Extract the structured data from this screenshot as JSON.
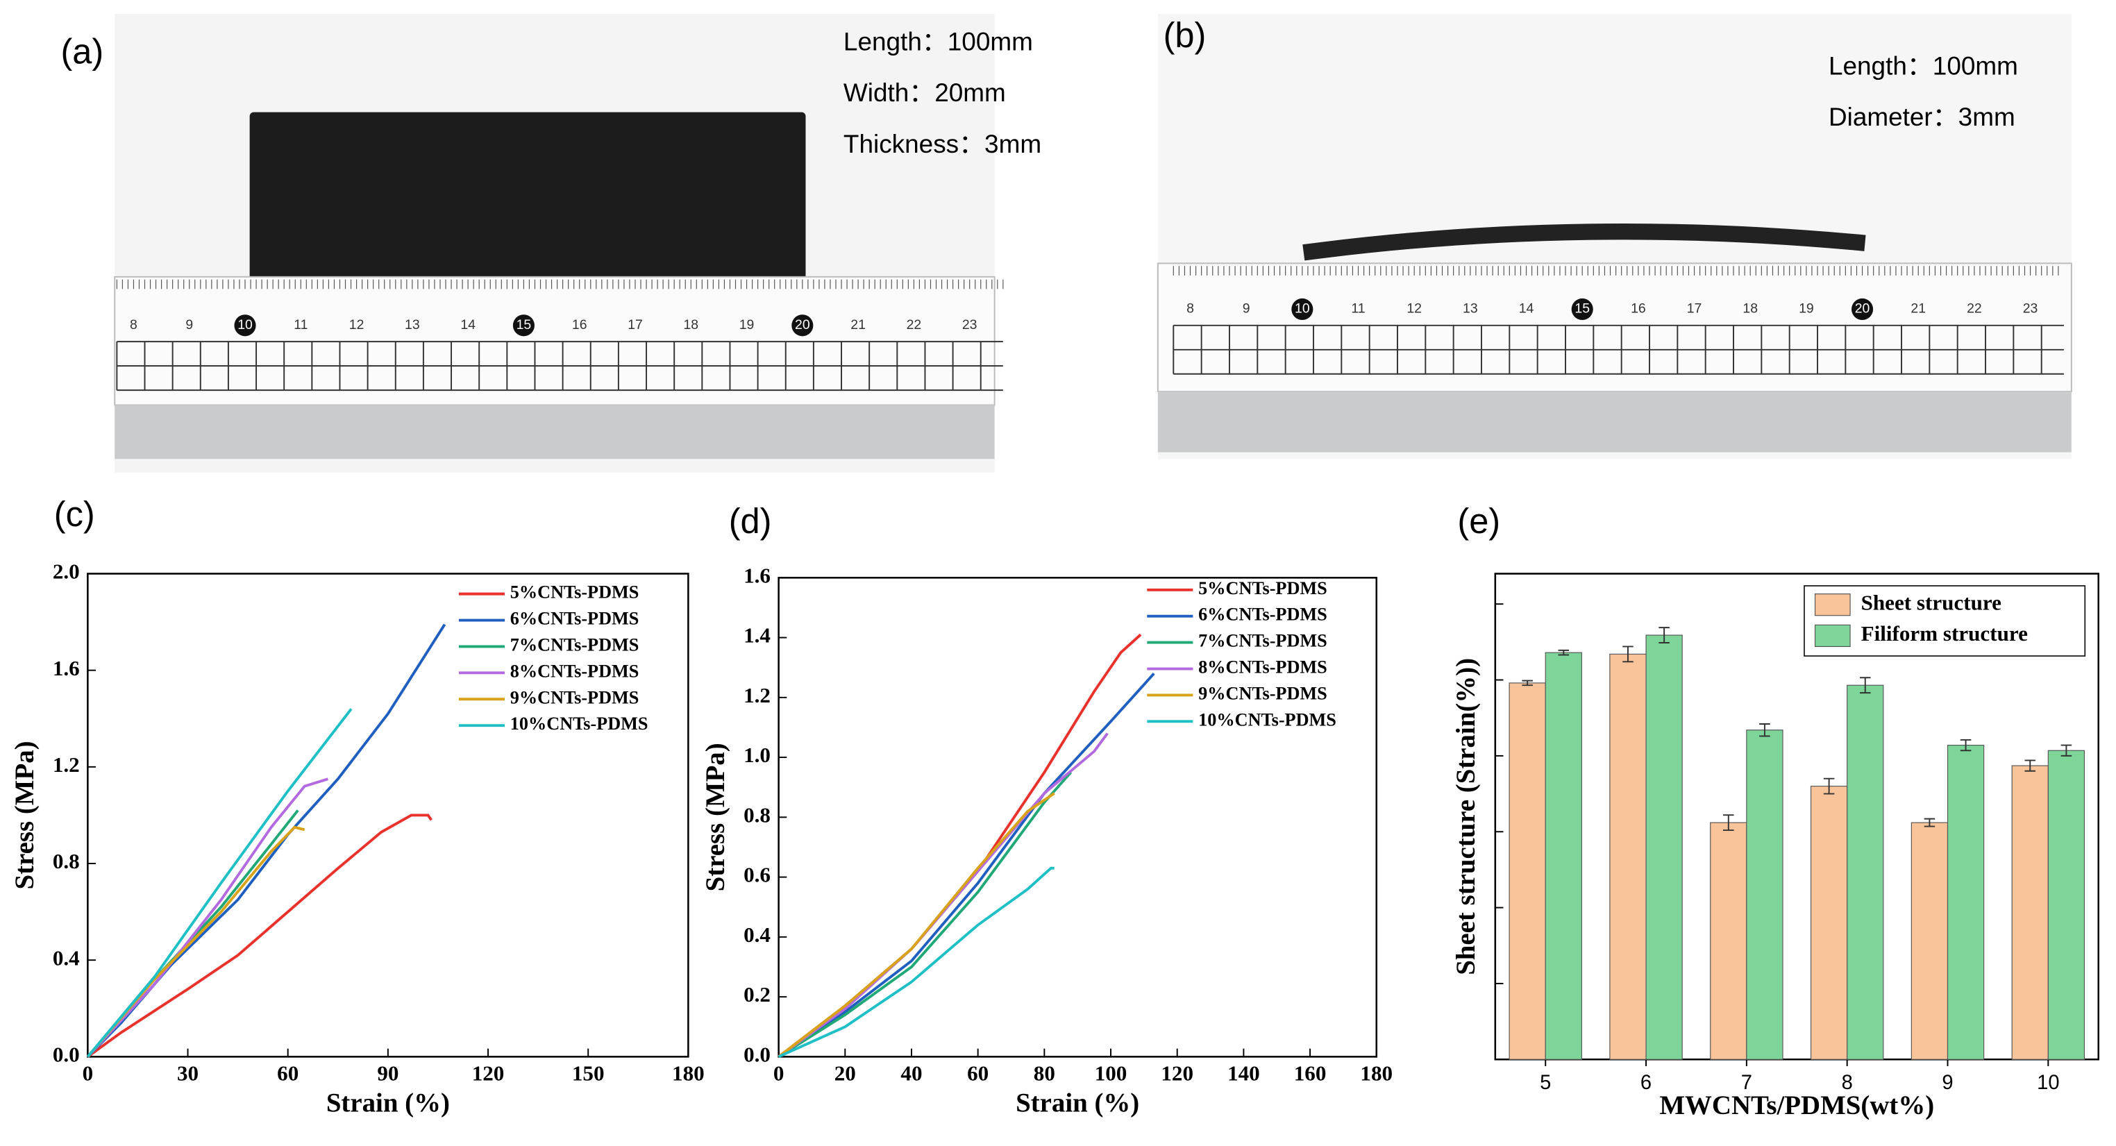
{
  "panels": {
    "a": {
      "label": "(a)",
      "specs": [
        "Length：100mm",
        "Width：20mm",
        "Thickness：3mm"
      ],
      "ruler_labels": [
        "8",
        "9",
        "10",
        "11",
        "12",
        "13",
        "14",
        "15",
        "16",
        "17",
        "18",
        "19",
        "20",
        "21",
        "22",
        "23"
      ]
    },
    "b": {
      "label": "(b)",
      "specs": [
        "Length：100mm",
        "Diameter：3mm"
      ],
      "ruler_labels": [
        "8",
        "9",
        "10",
        "11",
        "12",
        "13",
        "14",
        "15",
        "16",
        "17",
        "18",
        "19",
        "20",
        "21",
        "22",
        "23"
      ]
    },
    "c": {
      "label": "(c)"
    },
    "d": {
      "label": "(d)"
    },
    "e": {
      "label": "(e)"
    }
  },
  "chart_data": [
    {
      "type": "line",
      "x_label": "Strain (%)",
      "y_label": "Stress (MPa)",
      "xlim": [
        0,
        180
      ],
      "xticks": [
        0,
        30,
        60,
        90,
        120,
        150,
        180
      ],
      "ylim": [
        0,
        2.0
      ],
      "yticks": [
        {
          "value": 0,
          "label": "0.0"
        },
        0.4,
        0.8,
        1.2,
        1.6,
        {
          "value": 2.0,
          "label": "2.0"
        }
      ],
      "legend": "upper right",
      "series": [
        {
          "name": "5%CNTs-PDMS",
          "color": "#e8322b",
          "x": [
            0,
            10,
            30,
            45,
            60,
            75,
            88,
            97,
            102,
            103
          ],
          "values": [
            0,
            0.1,
            0.28,
            0.42,
            0.6,
            0.78,
            0.93,
            1.0,
            1.0,
            0.98
          ]
        },
        {
          "name": "6%CNTs-PDMS",
          "color": "#1f5fbf",
          "x": [
            0,
            10,
            25,
            45,
            60,
            75,
            90,
            107
          ],
          "values": [
            0,
            0.14,
            0.38,
            0.65,
            0.92,
            1.15,
            1.42,
            1.79
          ]
        },
        {
          "name": "7%CNTs-PDMS",
          "color": "#20a876",
          "x": [
            0,
            20,
            40,
            55,
            63
          ],
          "values": [
            0,
            0.32,
            0.62,
            0.88,
            1.02
          ]
        },
        {
          "name": "8%CNTs-PDMS",
          "color": "#b36ae0",
          "x": [
            0,
            20,
            40,
            55,
            65,
            72
          ],
          "values": [
            0,
            0.3,
            0.65,
            0.95,
            1.12,
            1.15
          ]
        },
        {
          "name": "9%CNTs-PDMS",
          "color": "#d9a21b",
          "x": [
            0,
            20,
            40,
            55,
            62,
            65
          ],
          "values": [
            0,
            0.32,
            0.6,
            0.85,
            0.95,
            0.94
          ]
        },
        {
          "name": "10%CNTs-PDMS",
          "color": "#1fbfc6",
          "x": [
            0,
            20,
            40,
            60,
            79
          ],
          "values": [
            0,
            0.33,
            0.72,
            1.1,
            1.44
          ]
        }
      ]
    },
    {
      "type": "line",
      "x_label": "Strain (%)",
      "y_label": "Stress (MPa)",
      "xlim": [
        0,
        180
      ],
      "xticks": [
        0,
        20,
        40,
        60,
        80,
        100,
        120,
        140,
        160,
        180
      ],
      "ylim": [
        0,
        1.6
      ],
      "yticks": [
        {
          "value": 0,
          "label": "0.0"
        },
        0.2,
        0.4,
        0.6,
        0.8,
        {
          "value": 1.0,
          "label": "1.0"
        },
        1.2,
        1.4,
        1.6
      ],
      "legend": "upper right",
      "series": [
        {
          "name": "5%CNTs-PDMS",
          "color": "#e8322b",
          "x": [
            0,
            20,
            40,
            60,
            80,
            95,
            103,
            109
          ],
          "values": [
            0,
            0.17,
            0.36,
            0.62,
            0.95,
            1.22,
            1.35,
            1.41
          ]
        },
        {
          "name": "6%CNTs-PDMS",
          "color": "#1f5fbf",
          "x": [
            0,
            20,
            40,
            60,
            80,
            100,
            113
          ],
          "values": [
            0,
            0.15,
            0.32,
            0.58,
            0.88,
            1.12,
            1.28
          ]
        },
        {
          "name": "7%CNTs-PDMS",
          "color": "#20a876",
          "x": [
            0,
            20,
            40,
            60,
            80,
            88
          ],
          "values": [
            0,
            0.14,
            0.3,
            0.55,
            0.85,
            0.95
          ]
        },
        {
          "name": "8%CNTs-PDMS",
          "color": "#b36ae0",
          "x": [
            0,
            20,
            40,
            60,
            80,
            95,
            99
          ],
          "values": [
            0,
            0.16,
            0.36,
            0.62,
            0.88,
            1.02,
            1.08
          ]
        },
        {
          "name": "9%CNTs-PDMS",
          "color": "#d9a21b",
          "x": [
            0,
            20,
            40,
            60,
            75,
            83
          ],
          "values": [
            0,
            0.17,
            0.36,
            0.63,
            0.82,
            0.88
          ]
        },
        {
          "name": "10%CNTs-PDMS",
          "color": "#1fbfc6",
          "x": [
            0,
            20,
            40,
            60,
            75,
            82,
            83
          ],
          "values": [
            0,
            0.1,
            0.25,
            0.44,
            0.56,
            0.63,
            0.63
          ]
        }
      ]
    },
    {
      "type": "bar",
      "x_label": "MWCNTs/PDMS(wt%)",
      "y_label": "Sheet structure (Strain(%))",
      "categories": [
        "5",
        "6",
        "7",
        "8",
        "9",
        "10"
      ],
      "ylim": [
        0,
        6.4
      ],
      "yticks": [
        1,
        2,
        3,
        4,
        5,
        6
      ],
      "ytick_labels": false,
      "legend": "upper right",
      "series": [
        {
          "name": "Sheet structure",
          "color": "#f9c49a",
          "values": [
            4.96,
            5.34,
            3.12,
            3.6,
            3.12,
            3.87
          ],
          "errors": [
            0.03,
            0.1,
            0.1,
            0.1,
            0.05,
            0.07
          ]
        },
        {
          "name": "Filiform structure",
          "color": "#7dd59a",
          "values": [
            5.36,
            5.59,
            4.34,
            4.93,
            4.14,
            4.07
          ],
          "errors": [
            0.03,
            0.1,
            0.08,
            0.1,
            0.07,
            0.07
          ]
        }
      ]
    }
  ]
}
